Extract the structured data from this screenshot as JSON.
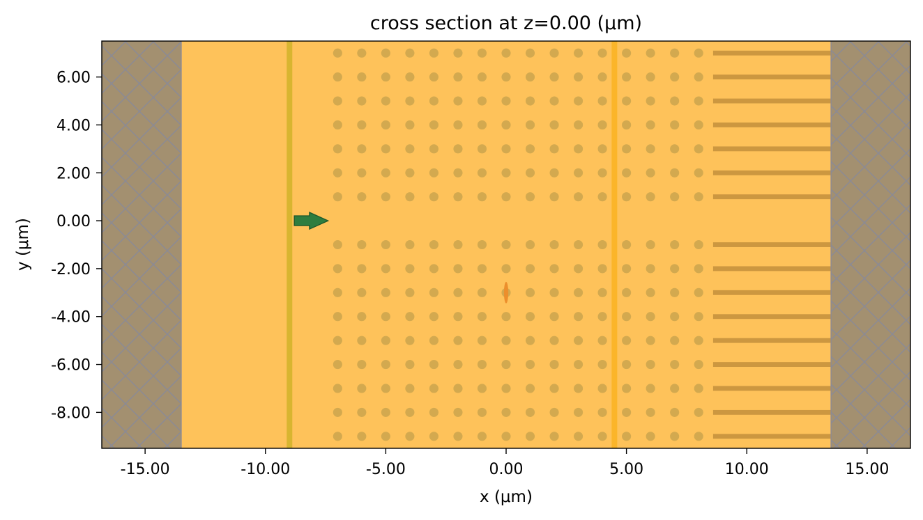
{
  "title": "cross section at z=0.00 (μm)",
  "xlabel": "x (μm)",
  "ylabel": "y (μm)",
  "colors": {
    "background": "#fec25a",
    "pml": "#a39070",
    "pml_hatch": "#8a8a96",
    "scatterer": "#d3a94f",
    "bar": "#cc9740",
    "source_plane": "#d8b530",
    "monitor_plane": "#fbb52a",
    "arrow": "#2e7d3f",
    "arrow_edge": "#1f5a2c",
    "small_object": "#ec8f2c"
  },
  "chart_data": {
    "type": "diagram",
    "xlim": [
      -16.8,
      16.8
    ],
    "ylim": [
      -9.5,
      7.5
    ],
    "x_ticks": [
      {
        "value": -15,
        "label": "-15.00"
      },
      {
        "value": -10,
        "label": "-10.00"
      },
      {
        "value": -5,
        "label": "-5.00"
      },
      {
        "value": 0,
        "label": "0.00"
      },
      {
        "value": 5,
        "label": "5.00"
      },
      {
        "value": 10,
        "label": "10.00"
      },
      {
        "value": 15,
        "label": "15.00"
      }
    ],
    "y_ticks": [
      {
        "value": 6,
        "label": "6.00"
      },
      {
        "value": 4,
        "label": "4.00"
      },
      {
        "value": 2,
        "label": "2.00"
      },
      {
        "value": 0,
        "label": "0.00"
      },
      {
        "value": -2,
        "label": "-2.00"
      },
      {
        "value": -4,
        "label": "-4.00"
      },
      {
        "value": -6,
        "label": "-6.00"
      },
      {
        "value": -8,
        "label": "-8.00"
      }
    ],
    "pml_regions": [
      {
        "x0": -16.8,
        "x1": -13.5
      },
      {
        "x0": 13.5,
        "x1": 16.8
      }
    ],
    "source_plane_x": -9.0,
    "monitor_plane_x": 4.5,
    "dot_columns_x": [
      -7,
      -6,
      -5,
      -4,
      -3,
      -2,
      -1,
      0,
      1,
      2,
      3,
      4,
      5,
      6,
      7,
      8
    ],
    "dot_rows_y": [
      7,
      6,
      5,
      4,
      3,
      2,
      1,
      -1,
      -2,
      -3,
      -4,
      -5,
      -6,
      -7,
      -8,
      -9
    ],
    "dot_radius": 0.2,
    "bar_rows_y": [
      7,
      6,
      5,
      4,
      3,
      2,
      1,
      -1,
      -2,
      -3,
      -4,
      -5,
      -6,
      -7,
      -8,
      -9
    ],
    "bar_x_range": [
      8.6,
      16.8
    ],
    "bar_height": 0.2,
    "arrow": {
      "x0": -8.8,
      "x1": -7.4,
      "y": 0
    },
    "small_object": {
      "x": 0,
      "y": -3,
      "rx": 0.1,
      "ry": 0.5
    }
  }
}
